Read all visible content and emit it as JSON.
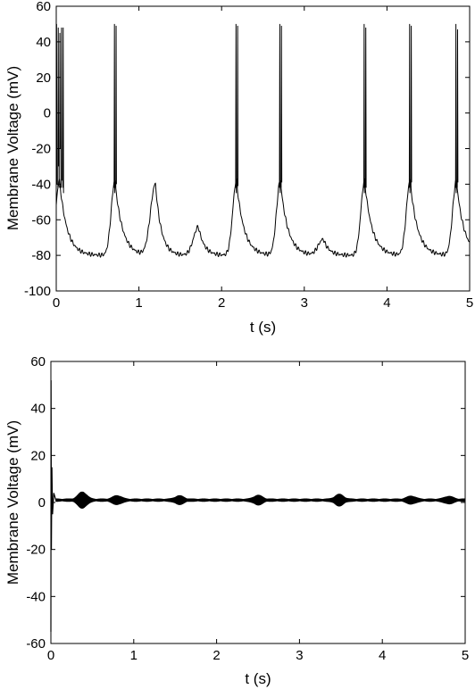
{
  "chart_data": [
    {
      "type": "line",
      "xlabel": "t (s)",
      "ylabel": "Membrane Voltage (mV)",
      "xlim": [
        0,
        5
      ],
      "ylim": [
        -100,
        60
      ],
      "xticks": [
        0,
        1,
        2,
        3,
        4,
        5
      ],
      "yticks": [
        -100,
        -80,
        -60,
        -40,
        -20,
        0,
        20,
        40,
        60
      ],
      "grid": false,
      "line_color": "#000000",
      "baseline_mV": -80,
      "spikes": [
        {
          "t": 0.0,
          "peak": 50,
          "after": -40
        },
        {
          "t": 0.02,
          "peak": 48,
          "after": -30
        },
        {
          "t": 0.04,
          "peak": 45,
          "after": -20
        },
        {
          "t": 0.06,
          "peak": 48,
          "after": -38
        },
        {
          "t": 0.08,
          "peak": 48,
          "after": -45
        },
        {
          "t": 0.7,
          "peak": 50,
          "after": -45
        },
        {
          "t": 0.72,
          "peak": 49,
          "after": -40
        },
        {
          "t": 2.17,
          "peak": 50,
          "after": -45
        },
        {
          "t": 2.19,
          "peak": 49,
          "after": -41
        },
        {
          "t": 2.7,
          "peak": 50,
          "after": -45
        },
        {
          "t": 2.72,
          "peak": 49,
          "after": -39
        },
        {
          "t": 3.72,
          "peak": 50,
          "after": -45
        },
        {
          "t": 3.74,
          "peak": 48,
          "after": -42
        },
        {
          "t": 4.27,
          "peak": 50,
          "after": -45
        },
        {
          "t": 4.29,
          "peak": 49,
          "after": -39
        },
        {
          "t": 4.83,
          "peak": 50,
          "after": -45
        },
        {
          "t": 4.85,
          "peak": 47,
          "after": -39
        }
      ],
      "subthreshold_bumps": [
        {
          "t": 1.2,
          "peak": -40
        },
        {
          "t": 1.72,
          "peak": -64
        },
        {
          "t": 3.23,
          "peak": -71
        }
      ]
    },
    {
      "type": "line",
      "xlabel": "t (s)",
      "ylabel": "Membrane Voltage (mV)",
      "xlim": [
        0,
        5
      ],
      "ylim": [
        -60,
        60
      ],
      "xticks": [
        0,
        1,
        2,
        3,
        4,
        5
      ],
      "yticks": [
        -60,
        -40,
        -20,
        0,
        20,
        40,
        60
      ],
      "grid": false,
      "line_color": "#000000",
      "steady_level_mV": 1,
      "initial_transient": {
        "t": 0.0,
        "max": 52,
        "min": -55
      },
      "oscillation_bursts": [
        {
          "t": 0.38,
          "amplitude": 3.0
        },
        {
          "t": 0.8,
          "amplitude": 1.5
        },
        {
          "t": 1.55,
          "amplitude": 1.4
        },
        {
          "t": 2.5,
          "amplitude": 1.6
        },
        {
          "t": 3.48,
          "amplitude": 2.0
        },
        {
          "t": 4.35,
          "amplitude": 1.3
        },
        {
          "t": 4.8,
          "amplitude": 1.2
        }
      ]
    }
  ]
}
